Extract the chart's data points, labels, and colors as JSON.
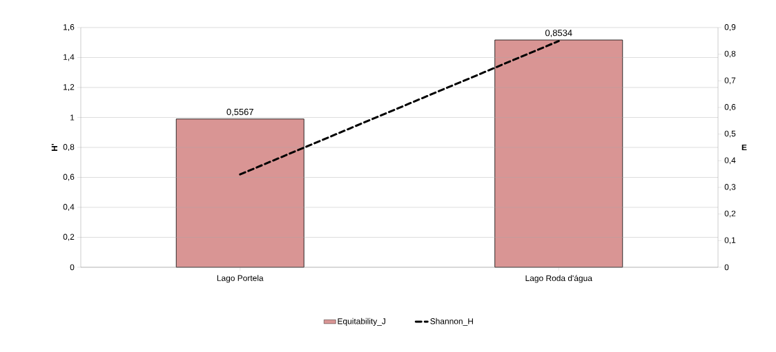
{
  "chart_data": {
    "type": "bar",
    "categories": [
      "Lago Portela",
      "Lago Roda d'água"
    ],
    "ylabel": "H'",
    "y2label": "E",
    "ylim": [
      0,
      1.6
    ],
    "yticks": [
      {
        "value": 0,
        "label": "0"
      },
      {
        "value": 0.2,
        "label": "0,2"
      },
      {
        "value": 0.4,
        "label": "0,4"
      },
      {
        "value": 0.6,
        "label": "0,6"
      },
      {
        "value": 0.8,
        "label": "0,8"
      },
      {
        "value": 1,
        "label": "1"
      },
      {
        "value": 1.2,
        "label": "1,2"
      },
      {
        "value": 1.4,
        "label": "1,4"
      },
      {
        "value": 1.6,
        "label": "1,6"
      }
    ],
    "y2lim": [
      0,
      0.9
    ],
    "y2ticks": [
      {
        "value": 0,
        "label": "0"
      },
      {
        "value": 0.1,
        "label": "0,1"
      },
      {
        "value": 0.2,
        "label": "0,2"
      },
      {
        "value": 0.3,
        "label": "0,3"
      },
      {
        "value": 0.4,
        "label": "0,4"
      },
      {
        "value": 0.5,
        "label": "0,5"
      },
      {
        "value": 0.6,
        "label": "0,6"
      },
      {
        "value": 0.7,
        "label": "0,7"
      },
      {
        "value": 0.8,
        "label": "0,8"
      },
      {
        "value": 0.9,
        "label": "0,9"
      }
    ],
    "grid": "y",
    "legend": "bottom",
    "series": [
      {
        "name": "Equitability_J",
        "axis": "y2",
        "color": "#d99594",
        "values": [
          0.5567,
          0.8534
        ],
        "value_labels": [
          "0,5567",
          "0,8534"
        ]
      },
      {
        "name": "Shannon_H",
        "type": "line",
        "line_style": "dashed",
        "color": "#000000",
        "values": [
          0.62,
          1.51
        ]
      }
    ]
  }
}
